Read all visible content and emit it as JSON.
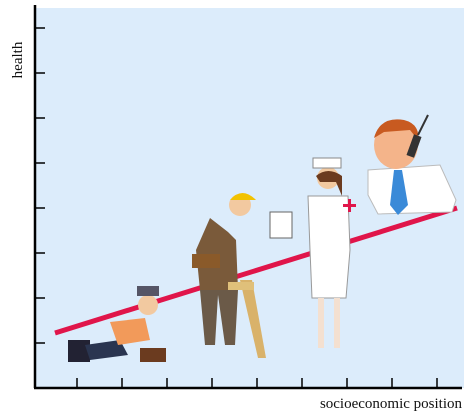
{
  "axes": {
    "y_label": "health",
    "x_label": "socioeconomic position"
  }
}
